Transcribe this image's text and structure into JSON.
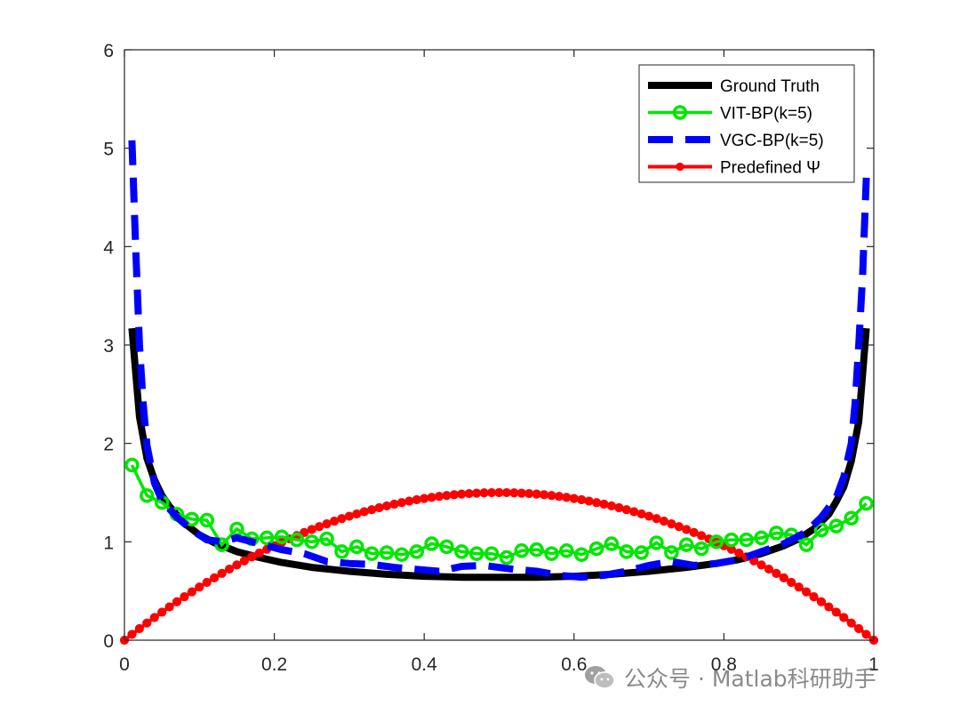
{
  "chart_data": {
    "type": "line",
    "title": "",
    "xlabel": "",
    "ylabel": "",
    "xlim": [
      0,
      1
    ],
    "ylim": [
      0,
      6
    ],
    "xticks": [
      0,
      0.2,
      0.4,
      0.6,
      0.8,
      1
    ],
    "xtick_labels": [
      "0",
      "0.2",
      "0.4",
      "0.6",
      "0.8",
      "1"
    ],
    "yticks": [
      0,
      1,
      2,
      3,
      4,
      5,
      6
    ],
    "ytick_labels": [
      "0",
      "1",
      "2",
      "3",
      "4",
      "5",
      "6"
    ],
    "grid": false,
    "legend_position": "top-right",
    "series": [
      {
        "name": "Ground Truth",
        "color": "#000000",
        "style": "solid-thick",
        "x": [
          0.01,
          0.02,
          0.03,
          0.04,
          0.05,
          0.06,
          0.08,
          0.1,
          0.12,
          0.15,
          0.18,
          0.21,
          0.25,
          0.3,
          0.35,
          0.4,
          0.45,
          0.5,
          0.55,
          0.6,
          0.65,
          0.7,
          0.75,
          0.79,
          0.82,
          0.85,
          0.88,
          0.9,
          0.92,
          0.94,
          0.95,
          0.96,
          0.97,
          0.98,
          0.99
        ],
        "y": [
          3.17,
          2.27,
          1.85,
          1.63,
          1.47,
          1.36,
          1.19,
          1.07,
          0.99,
          0.9,
          0.84,
          0.79,
          0.74,
          0.7,
          0.67,
          0.65,
          0.64,
          0.64,
          0.64,
          0.65,
          0.67,
          0.7,
          0.74,
          0.78,
          0.82,
          0.88,
          0.96,
          1.03,
          1.13,
          1.28,
          1.41,
          1.56,
          1.82,
          2.22,
          3.17
        ]
      },
      {
        "name": "VIT-BP(k=5)",
        "color": "#00e600",
        "style": "solid-circle-markers",
        "x": [
          0.01,
          0.03,
          0.05,
          0.07,
          0.09,
          0.11,
          0.13,
          0.15,
          0.17,
          0.19,
          0.21,
          0.23,
          0.25,
          0.27,
          0.29,
          0.31,
          0.33,
          0.35,
          0.37,
          0.39,
          0.41,
          0.43,
          0.45,
          0.47,
          0.49,
          0.51,
          0.53,
          0.55,
          0.57,
          0.59,
          0.61,
          0.63,
          0.65,
          0.67,
          0.69,
          0.71,
          0.73,
          0.75,
          0.77,
          0.79,
          0.81,
          0.83,
          0.85,
          0.87,
          0.89,
          0.91,
          0.93,
          0.95,
          0.97,
          0.99
        ],
        "y": [
          1.78,
          1.47,
          1.4,
          1.28,
          1.23,
          1.22,
          0.97,
          1.13,
          1.03,
          1.04,
          1.05,
          1.02,
          1.0,
          1.03,
          0.9,
          0.95,
          0.88,
          0.89,
          0.87,
          0.9,
          0.98,
          0.95,
          0.9,
          0.88,
          0.88,
          0.84,
          0.91,
          0.92,
          0.88,
          0.91,
          0.87,
          0.93,
          0.98,
          0.9,
          0.89,
          0.99,
          0.89,
          0.97,
          0.93,
          1.0,
          1.02,
          1.02,
          1.04,
          1.09,
          1.07,
          0.97,
          1.12,
          1.16,
          1.24,
          1.39
        ]
      },
      {
        "name": "VGC-BP(k=5)",
        "color": "#0000ff",
        "style": "dashed-thick",
        "x": [
          0.01,
          0.015,
          0.02,
          0.025,
          0.03,
          0.04,
          0.05,
          0.07,
          0.09,
          0.11,
          0.13,
          0.15,
          0.18,
          0.21,
          0.24,
          0.27,
          0.3,
          0.33,
          0.36,
          0.39,
          0.42,
          0.45,
          0.48,
          0.5,
          0.52,
          0.55,
          0.58,
          0.61,
          0.64,
          0.67,
          0.7,
          0.73,
          0.76,
          0.79,
          0.82,
          0.85,
          0.88,
          0.91,
          0.93,
          0.95,
          0.96,
          0.97,
          0.975,
          0.98,
          0.985,
          0.99
        ],
        "y": [
          5.08,
          4.0,
          3.0,
          2.4,
          1.98,
          1.6,
          1.42,
          1.25,
          1.12,
          1.02,
          1.0,
          1.04,
          0.98,
          0.92,
          0.88,
          0.8,
          0.78,
          0.77,
          0.74,
          0.72,
          0.7,
          0.75,
          0.76,
          0.74,
          0.72,
          0.7,
          0.66,
          0.64,
          0.66,
          0.7,
          0.76,
          0.8,
          0.76,
          0.78,
          0.82,
          0.9,
          0.98,
          1.1,
          1.25,
          1.45,
          1.66,
          2.0,
          2.4,
          3.0,
          3.7,
          4.7
        ]
      },
      {
        "name": "Predefined Ψ",
        "color": "#ff0000",
        "style": "solid-dot-markers",
        "formula": "y = 6x(1-x)",
        "x": [
          0,
          0.5,
          1
        ],
        "y": [
          0,
          1.5,
          0
        ]
      }
    ]
  },
  "watermark": {
    "text": "公众号 · Matlab科研助手"
  }
}
